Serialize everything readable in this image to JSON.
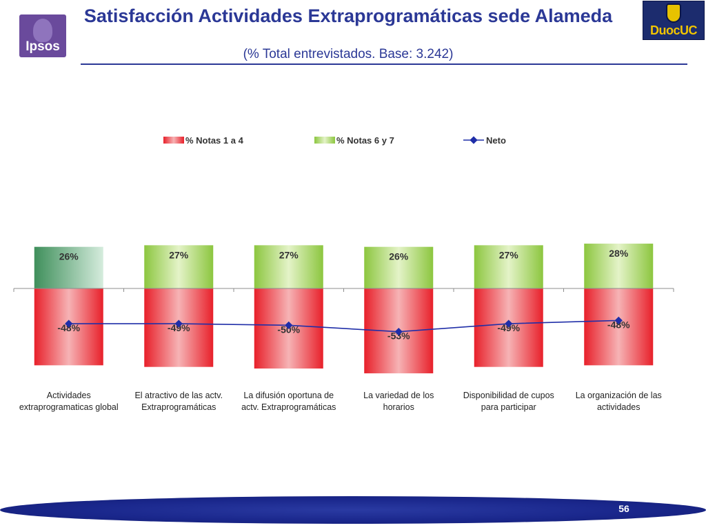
{
  "header": {
    "title": "Satisfacción Actividades Extraprogramáticas sede Alameda",
    "subtitle": "(% Total entrevistados. Base: 3.242)",
    "logo_left": "Ipsos",
    "logo_right": "DuocUC"
  },
  "footer": {
    "page_number": "56"
  },
  "colors": {
    "title": "#2b3896",
    "negative_bar": "#e8202a",
    "positive_bar": "#8cc63f",
    "positive_bar_first": "#3f8f5b",
    "line": "#1f2ea8",
    "footer": "#1a278c"
  },
  "chart_data": {
    "type": "bar",
    "stacked": "diverging",
    "title": "",
    "xlabel": "",
    "ylabel": "",
    "ylim": [
      -60,
      60
    ],
    "grid": false,
    "legend_position": "top",
    "categories": [
      [
        "Actividades",
        "extraprogramaticas global"
      ],
      [
        "El atractivo de las actv.",
        "Extraprogramáticas"
      ],
      [
        "La difusión oportuna de",
        "actv. Extraprogramáticas"
      ],
      [
        "La variedad de los",
        "horarios"
      ],
      [
        "Disponibilidad de cupos",
        "para participar"
      ],
      [
        "La organización de las",
        "actividades"
      ]
    ],
    "series": [
      {
        "name": "% Notas 1 a 4",
        "kind": "bar",
        "values": [
          -48,
          -49,
          -50,
          -53,
          -49,
          -48
        ],
        "labels": [
          "-48%",
          "-49%",
          "-50%",
          "-53%",
          "-49%",
          "-48%"
        ]
      },
      {
        "name": "% Notas 6 y 7",
        "kind": "bar",
        "values": [
          26,
          27,
          27,
          26,
          27,
          28
        ],
        "labels": [
          "26%",
          "27%",
          "27%",
          "26%",
          "27%",
          "28%"
        ]
      },
      {
        "name": "Neto",
        "kind": "line",
        "values": [
          -22,
          -22,
          -23,
          -27,
          -22,
          -20
        ]
      }
    ]
  }
}
